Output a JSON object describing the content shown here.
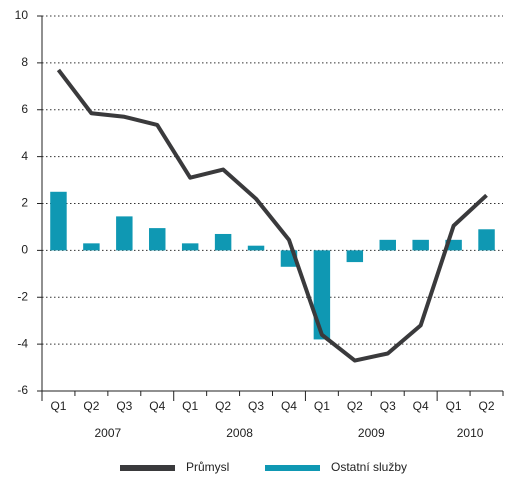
{
  "chart_data": {
    "type": "combo",
    "categories": [
      "Q1",
      "Q2",
      "Q3",
      "Q4",
      "Q1",
      "Q2",
      "Q3",
      "Q4",
      "Q1",
      "Q2",
      "Q3",
      "Q4",
      "Q1",
      "Q2"
    ],
    "years": [
      "2007",
      "2008",
      "2009",
      "2010"
    ],
    "series": [
      {
        "name": "Průmysl",
        "type": "line",
        "color": "#3a3a3c",
        "values": [
          7.7,
          5.85,
          5.7,
          5.35,
          3.1,
          3.45,
          2.2,
          0.45,
          -3.6,
          -4.7,
          -4.4,
          -3.2,
          1.05,
          2.35
        ]
      },
      {
        "name": "Ostatní služby",
        "type": "bar",
        "color": "#0f98b3",
        "values": [
          2.5,
          0.3,
          1.45,
          0.95,
          0.3,
          0.7,
          0.2,
          -0.7,
          -3.8,
          -0.5,
          0.45,
          0.45,
          0.45,
          0.9
        ]
      }
    ],
    "ylim": [
      -6,
      10
    ],
    "yticks": [
      -6,
      -4,
      -2,
      0,
      2,
      4,
      6,
      8,
      10
    ],
    "grid": true,
    "legend": "bottom"
  }
}
